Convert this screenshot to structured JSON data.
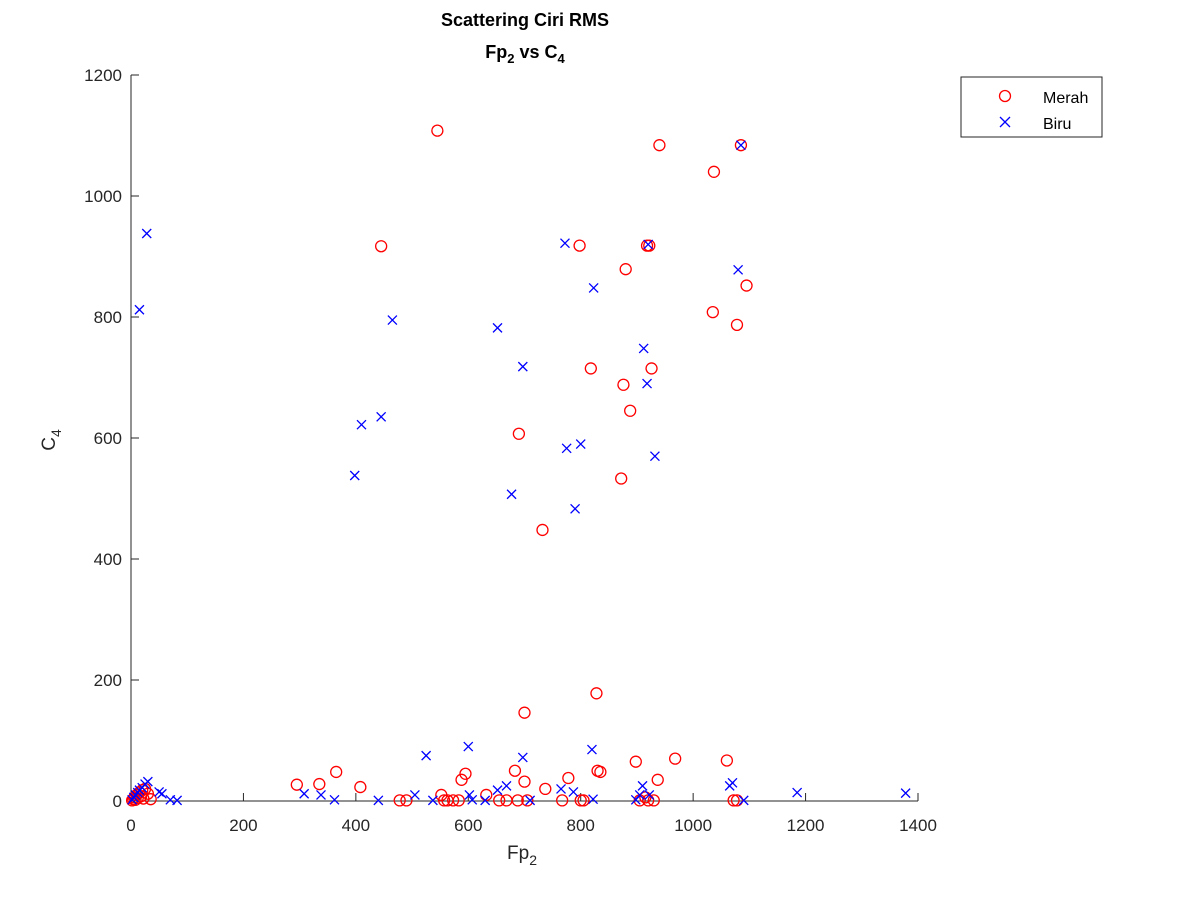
{
  "chart_data": {
    "type": "scatter",
    "title_line1": "Scattering Ciri RMS",
    "title_line2": {
      "a": "Fp",
      "a_sub": "2",
      "mid": " vs C",
      "b_sub": "4"
    },
    "xlabel": {
      "base": "Fp",
      "sub": "2"
    },
    "ylabel": {
      "base": "C",
      "sub": "4"
    },
    "xlim": [
      0,
      1400
    ],
    "ylim": [
      0,
      1200
    ],
    "xticks": [
      0,
      200,
      400,
      600,
      800,
      1000,
      1200,
      1400
    ],
    "yticks": [
      0,
      200,
      400,
      600,
      800,
      1000,
      1200
    ],
    "grid": false,
    "legend_position": "top-right",
    "colors": {
      "merah": "#ff0000",
      "biru": "#0000ff"
    },
    "series": [
      {
        "name": "Merah",
        "marker": "circle",
        "points": [
          [
            2,
            1
          ],
          [
            4,
            3
          ],
          [
            6,
            6
          ],
          [
            8,
            2
          ],
          [
            10,
            10
          ],
          [
            12,
            5
          ],
          [
            15,
            14
          ],
          [
            18,
            8
          ],
          [
            20,
            18
          ],
          [
            22,
            4
          ],
          [
            25,
            20
          ],
          [
            30,
            12
          ],
          [
            35,
            3
          ],
          [
            295,
            27
          ],
          [
            335,
            28
          ],
          [
            365,
            48
          ],
          [
            408,
            23
          ],
          [
            478,
            1
          ],
          [
            490,
            1
          ],
          [
            552,
            10
          ],
          [
            557,
            1
          ],
          [
            563,
            1
          ],
          [
            573,
            1
          ],
          [
            583,
            1
          ],
          [
            588,
            35
          ],
          [
            595,
            45
          ],
          [
            632,
            10
          ],
          [
            655,
            1
          ],
          [
            668,
            1
          ],
          [
            683,
            50
          ],
          [
            688,
            1
          ],
          [
            700,
            32
          ],
          [
            705,
            1
          ],
          [
            737,
            20
          ],
          [
            767,
            1
          ],
          [
            778,
            38
          ],
          [
            800,
            1
          ],
          [
            805,
            1
          ],
          [
            830,
            50
          ],
          [
            835,
            48
          ],
          [
            898,
            65
          ],
          [
            905,
            1
          ],
          [
            915,
            6
          ],
          [
            920,
            1
          ],
          [
            930,
            1
          ],
          [
            937,
            35
          ],
          [
            968,
            70
          ],
          [
            1060,
            67
          ],
          [
            1072,
            1
          ],
          [
            1078,
            1
          ],
          [
            545,
            1108
          ],
          [
            445,
            917
          ],
          [
            690,
            607
          ],
          [
            732,
            448
          ],
          [
            700,
            146
          ],
          [
            798,
            918
          ],
          [
            818,
            715
          ],
          [
            828,
            178
          ],
          [
            872,
            533
          ],
          [
            876,
            688
          ],
          [
            880,
            879
          ],
          [
            888,
            645
          ],
          [
            918,
            918
          ],
          [
            922,
            918
          ],
          [
            926,
            715
          ],
          [
            940,
            1084
          ],
          [
            1035,
            808
          ],
          [
            1037,
            1040
          ],
          [
            1078,
            787
          ],
          [
            1085,
            1084
          ],
          [
            1095,
            852
          ]
        ]
      },
      {
        "name": "Biru",
        "marker": "x",
        "points": [
          [
            2,
            2
          ],
          [
            5,
            6
          ],
          [
            8,
            10
          ],
          [
            12,
            14
          ],
          [
            15,
            18
          ],
          [
            20,
            22
          ],
          [
            25,
            28
          ],
          [
            30,
            32
          ],
          [
            50,
            15
          ],
          [
            55,
            12
          ],
          [
            70,
            2
          ],
          [
            82,
            1
          ],
          [
            28,
            938
          ],
          [
            15,
            812
          ],
          [
            398,
            538
          ],
          [
            410,
            622
          ],
          [
            445,
            635
          ],
          [
            465,
            795
          ],
          [
            652,
            782
          ],
          [
            677,
            507
          ],
          [
            697,
            718
          ],
          [
            772,
            922
          ],
          [
            775,
            583
          ],
          [
            790,
            483
          ],
          [
            800,
            590
          ],
          [
            823,
            848
          ],
          [
            912,
            748
          ],
          [
            918,
            690
          ],
          [
            920,
            920
          ],
          [
            932,
            570
          ],
          [
            1080,
            878
          ],
          [
            1085,
            1084
          ],
          [
            308,
            12
          ],
          [
            338,
            10
          ],
          [
            362,
            2
          ],
          [
            440,
            1
          ],
          [
            505,
            10
          ],
          [
            525,
            75
          ],
          [
            537,
            1
          ],
          [
            600,
            90
          ],
          [
            602,
            10
          ],
          [
            607,
            2
          ],
          [
            630,
            1
          ],
          [
            652,
            18
          ],
          [
            668,
            25
          ],
          [
            697,
            72
          ],
          [
            710,
            1
          ],
          [
            765,
            20
          ],
          [
            787,
            15
          ],
          [
            820,
            85
          ],
          [
            822,
            3
          ],
          [
            898,
            2
          ],
          [
            905,
            10
          ],
          [
            910,
            25
          ],
          [
            922,
            10
          ],
          [
            1065,
            25
          ],
          [
            1070,
            30
          ],
          [
            1090,
            1
          ],
          [
            1185,
            14
          ],
          [
            1378,
            13
          ]
        ]
      }
    ]
  }
}
